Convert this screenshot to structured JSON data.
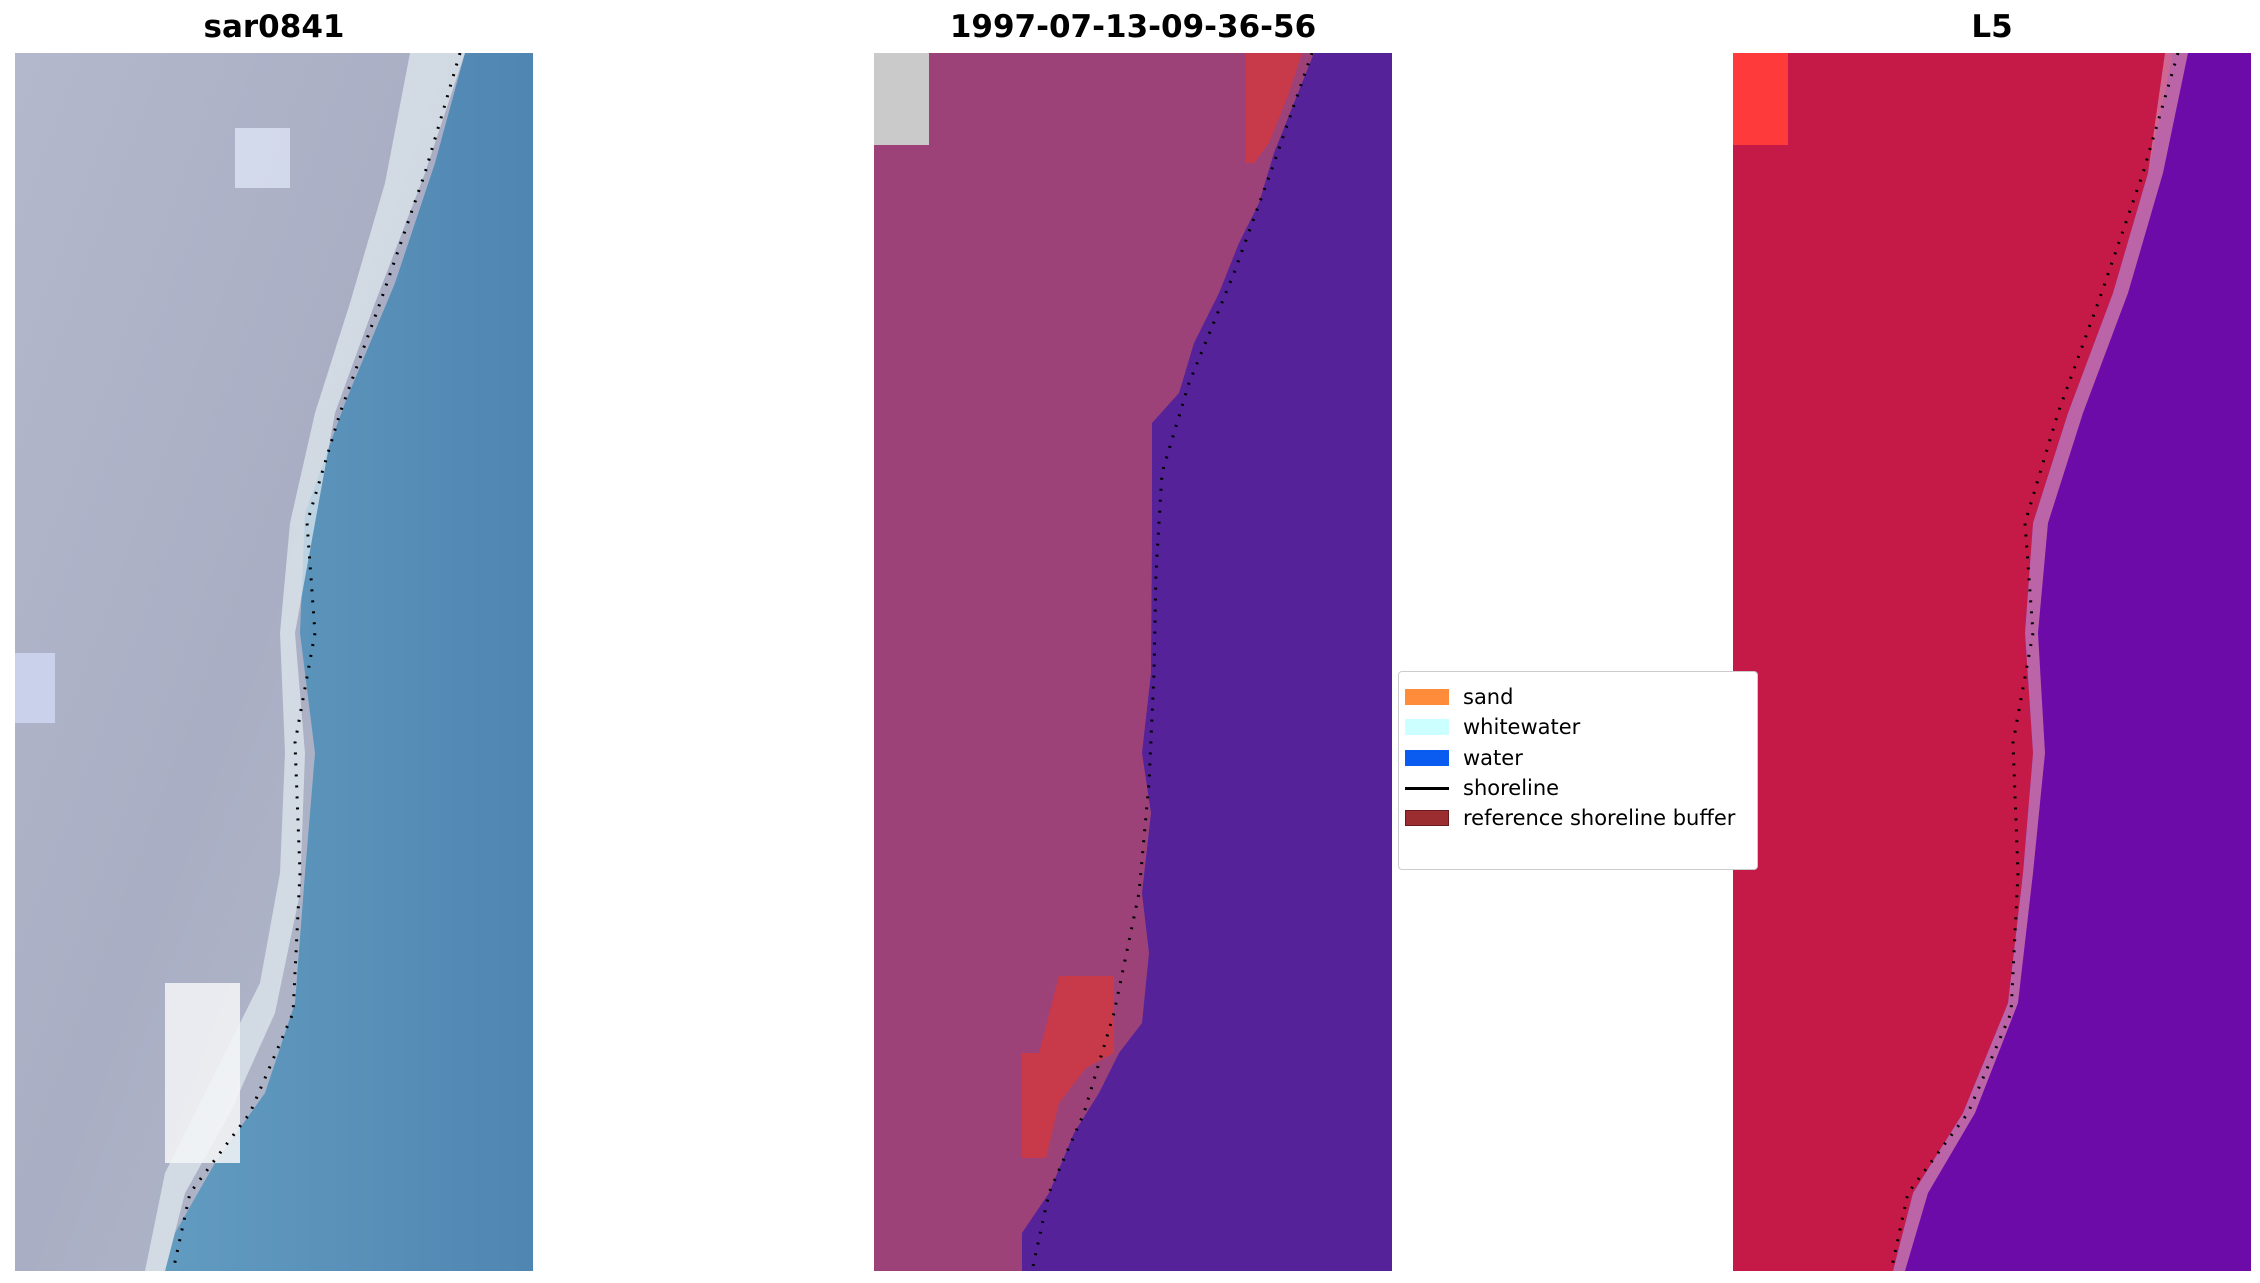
{
  "panels": [
    {
      "title": "sar0841"
    },
    {
      "title": "1997-07-13-09-36-56"
    },
    {
      "title": "L5"
    }
  ],
  "legend": {
    "items": [
      {
        "label": "sand",
        "color": "#ff8c3a",
        "kind": "patch"
      },
      {
        "label": "whitewater",
        "color": "#ccffff",
        "kind": "patch"
      },
      {
        "label": "water",
        "color": "#0a5cf0",
        "kind": "patch"
      },
      {
        "label": "shoreline",
        "color": "#000000",
        "kind": "line"
      },
      {
        "label": "reference shoreline buffer",
        "color": "#9b2c30",
        "kind": "patch"
      }
    ]
  },
  "colors": {
    "rgb_water": "#4f8fb8",
    "rgb_land": "#a8aec6",
    "class_water": "#55229a",
    "class_land": "#9c4279",
    "class_buffer": "#c83a4a",
    "index_land": "#c51a47",
    "index_water": "#6c0ba8"
  }
}
